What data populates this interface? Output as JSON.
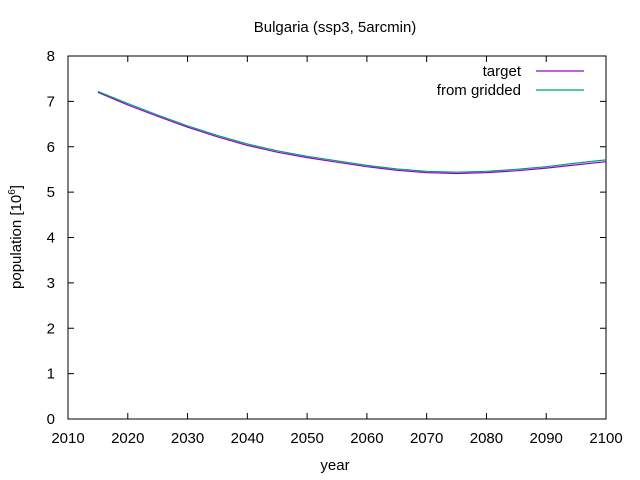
{
  "chart_data": {
    "type": "line",
    "title": "Bulgaria (ssp3, 5arcmin)",
    "xlabel": "year",
    "ylabel": "population [10",
    "ylabel_exponent": "6",
    "ylabel_suffix": "]",
    "xlim": [
      2010,
      2100
    ],
    "ylim": [
      0,
      8
    ],
    "x_ticks": [
      "2010",
      "2020",
      "2030",
      "2040",
      "2050",
      "2060",
      "2070",
      "2080",
      "2090",
      "2100"
    ],
    "y_ticks": [
      "0",
      "1",
      "2",
      "3",
      "4",
      "5",
      "6",
      "7",
      "8"
    ],
    "grid": false,
    "legend_position": "top-right",
    "series": [
      {
        "name": "target",
        "color": "#9400d3",
        "x": [
          2015,
          2020,
          2025,
          2030,
          2035,
          2040,
          2045,
          2050,
          2055,
          2060,
          2065,
          2070,
          2075,
          2080,
          2085,
          2090,
          2095,
          2100
        ],
        "y": [
          7.2,
          6.92,
          6.67,
          6.43,
          6.22,
          6.03,
          5.88,
          5.76,
          5.66,
          5.56,
          5.48,
          5.43,
          5.41,
          5.43,
          5.47,
          5.53,
          5.6,
          5.67
        ]
      },
      {
        "name": "from gridded",
        "color": "#009e73",
        "x": [
          2015,
          2020,
          2025,
          2030,
          2035,
          2040,
          2045,
          2050,
          2055,
          2060,
          2065,
          2070,
          2075,
          2080,
          2085,
          2090,
          2095,
          2100
        ],
        "y": [
          7.22,
          6.95,
          6.7,
          6.46,
          6.25,
          6.06,
          5.91,
          5.79,
          5.69,
          5.59,
          5.51,
          5.46,
          5.44,
          5.46,
          5.5,
          5.56,
          5.64,
          5.71
        ]
      }
    ]
  }
}
